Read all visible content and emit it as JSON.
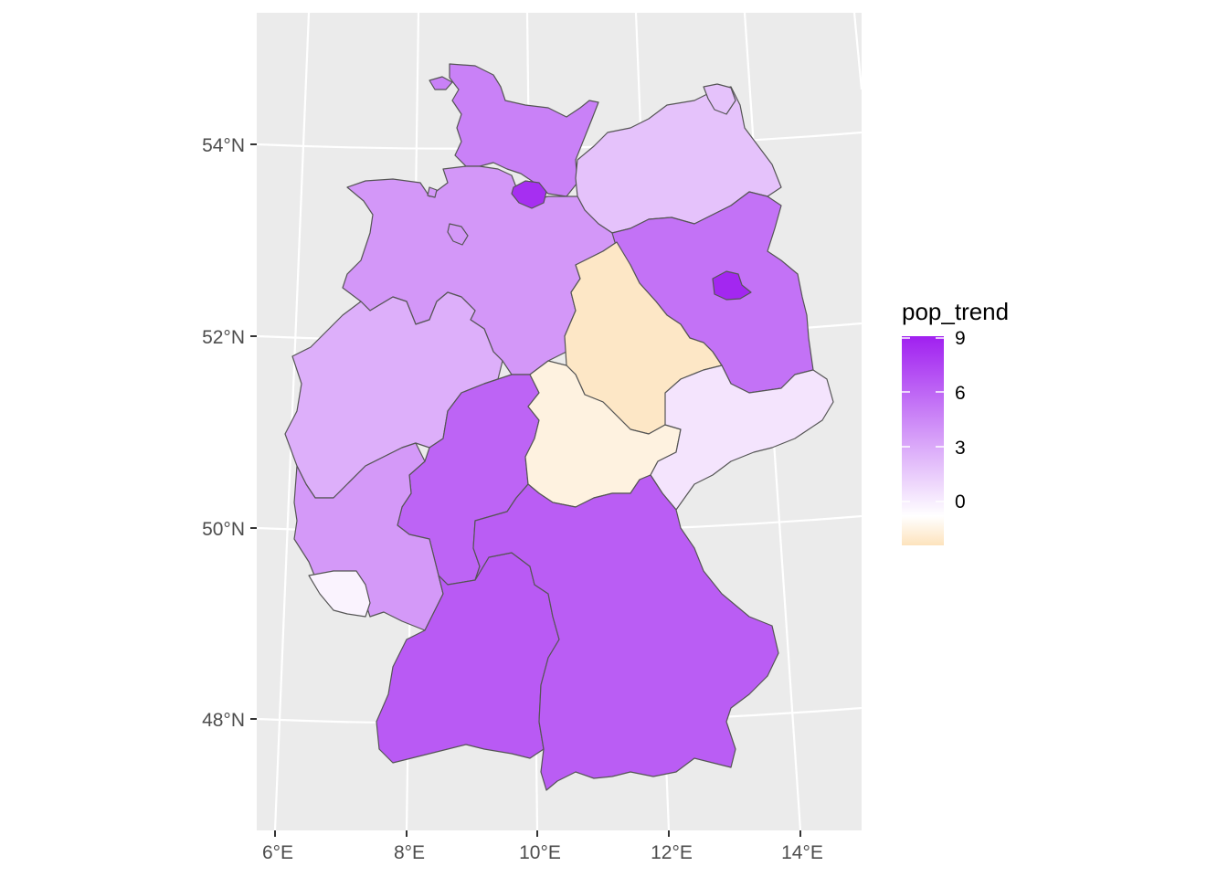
{
  "legend": {
    "title": "pop_trend",
    "ticks": [
      "9",
      "6",
      "3",
      "0"
    ],
    "range": [
      -1.5,
      9.2
    ],
    "colors": {
      "high": "#a020f0",
      "mid": "#ffffff",
      "low": "#fde3bd"
    }
  },
  "axes": {
    "y_labels": [
      "54°N",
      "52°N",
      "50°N",
      "48°N"
    ],
    "x_labels": [
      "6°E",
      "8°E",
      "10°E",
      "12°E",
      "14°E"
    ]
  },
  "colors": {
    "panel_bg": "#ebebeb",
    "grid": "#ffffff",
    "border": "#555555",
    "axis_text": "#4d4d4d"
  },
  "chart_data": {
    "type": "map",
    "fill_variable": "pop_trend",
    "regions": [
      {
        "name": "Schleswig-Holstein",
        "pop_trend": 5.2
      },
      {
        "name": "Hamburg",
        "pop_trend": 8.6
      },
      {
        "name": "Mecklenburg-Vorpommern",
        "pop_trend": 2.5
      },
      {
        "name": "Niedersachsen",
        "pop_trend": 4.3
      },
      {
        "name": "Bremen",
        "pop_trend": 4.3
      },
      {
        "name": "Brandenburg",
        "pop_trend": 5.8
      },
      {
        "name": "Berlin",
        "pop_trend": 8.9
      },
      {
        "name": "Sachsen-Anhalt",
        "pop_trend": -1.3
      },
      {
        "name": "Nordrhein-Westfalen",
        "pop_trend": 3.3
      },
      {
        "name": "Hessen",
        "pop_trend": 6.4
      },
      {
        "name": "Thüringen",
        "pop_trend": -0.7
      },
      {
        "name": "Sachsen",
        "pop_trend": 1.1
      },
      {
        "name": "Rheinland-Pfalz",
        "pop_trend": 4.2
      },
      {
        "name": "Saarland",
        "pop_trend": 0.5
      },
      {
        "name": "Baden-Württemberg",
        "pop_trend": 6.8
      },
      {
        "name": "Bayern",
        "pop_trend": 6.7
      }
    ]
  }
}
